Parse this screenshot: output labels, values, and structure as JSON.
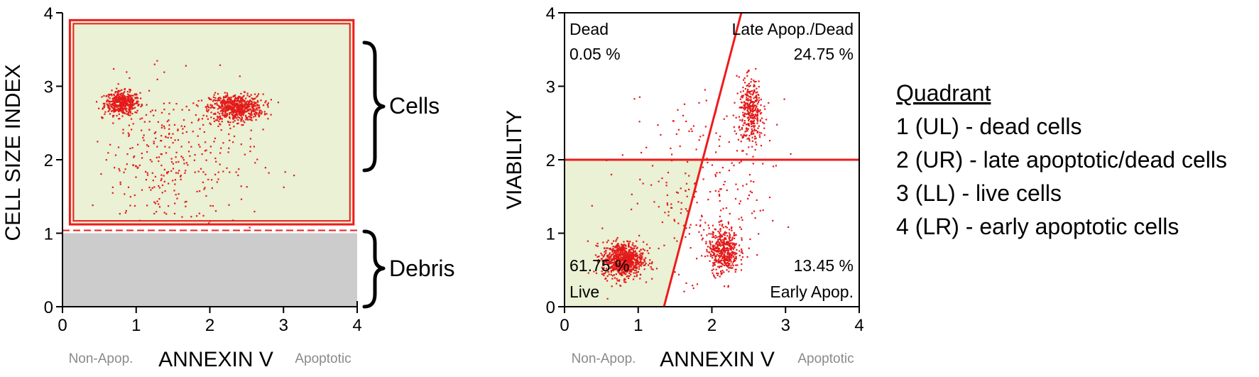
{
  "colors": {
    "gate_red": "#ee1c1c",
    "dot_red": "#e41a1a",
    "gate_fill": "#eaf1d4",
    "debris_fill": "#cccccc"
  },
  "chart_data": [
    {
      "type": "scatter",
      "xlabel": "ANNEXIN V",
      "xlabel_left": "Non-Apop.",
      "xlabel_right": "Apoptotic",
      "ylabel": "CELL SIZE INDEX",
      "xlim": [
        0,
        4
      ],
      "ylim": [
        0,
        4
      ],
      "xticks": [
        0,
        1,
        2,
        3,
        4
      ],
      "yticks": [
        0,
        1,
        2,
        3,
        4
      ],
      "cells_gate": {
        "x": [
          0.1,
          3.95
        ],
        "y": [
          1.12,
          3.9
        ]
      },
      "debris_region": {
        "x": [
          0,
          4
        ],
        "y": [
          0,
          1
        ]
      },
      "debris_threshold": 1.0,
      "clusters": [
        {
          "cx": 0.8,
          "cy": 2.78,
          "sx": 0.12,
          "sy": 0.08,
          "n": 450
        },
        {
          "cx": 2.35,
          "cy": 2.72,
          "sx": 0.18,
          "sy": 0.09,
          "n": 650
        },
        {
          "cx": 1.5,
          "cy": 2.0,
          "sx": 0.55,
          "sy": 0.5,
          "n": 350
        }
      ],
      "brace_labels": [
        {
          "label": "Cells",
          "y_range": [
            2.0,
            3.5
          ]
        },
        {
          "label": "Debris",
          "y_range": [
            0.0,
            1.0
          ]
        }
      ]
    },
    {
      "type": "scatter",
      "xlabel": "ANNEXIN V",
      "xlabel_left": "Non-Apop.",
      "xlabel_right": "Apoptotic",
      "ylabel": "VIABILITY",
      "xlim": [
        0,
        4
      ],
      "ylim": [
        0,
        4
      ],
      "xticks": [
        0,
        1,
        2,
        3,
        4
      ],
      "yticks": [
        0,
        1,
        2,
        3,
        4
      ],
      "horizontal_line_y": 2.0,
      "diagonal_line": [
        [
          1.35,
          0.0
        ],
        [
          2.4,
          4.0
        ]
      ],
      "quadrants": [
        {
          "position": "top-left",
          "name": "Dead",
          "percent": "0.05 %"
        },
        {
          "position": "top-right",
          "name": "Late Apop./Dead",
          "percent": "24.75 %"
        },
        {
          "position": "bottom-left",
          "name": "Live",
          "percent": "61.75 %"
        },
        {
          "position": "bottom-right",
          "name": "Early Apop.",
          "percent": "13.45 %"
        }
      ],
      "clusters": [
        {
          "cx": 0.78,
          "cy": 0.65,
          "sx": 0.14,
          "sy": 0.12,
          "n": 800
        },
        {
          "cx": 2.15,
          "cy": 0.78,
          "sx": 0.1,
          "sy": 0.16,
          "n": 450
        },
        {
          "cx": 2.52,
          "cy": 2.65,
          "sx": 0.08,
          "sy": 0.22,
          "n": 350
        },
        {
          "cx": 1.9,
          "cy": 1.5,
          "sx": 0.55,
          "sy": 0.7,
          "n": 250
        }
      ]
    }
  ],
  "legend": {
    "title": "Quadrant",
    "items": [
      "1 (UL) - dead cells",
      "2 (UR) - late apoptotic/dead cells",
      "3 (LL) - live cells",
      "4 (LR) - early apoptotic cells"
    ]
  }
}
